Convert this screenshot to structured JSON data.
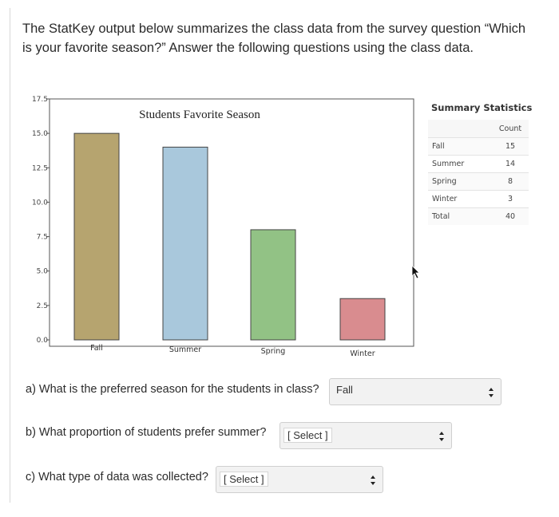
{
  "intro_text": "The StatKey output below summarizes the class data from the survey question “Which is your favorite season?” Answer the following questions using the class data.",
  "chart_data": {
    "type": "bar",
    "title": "Students Favorite Season",
    "categories": [
      "Fall",
      "Summer",
      "Spring",
      "Winter"
    ],
    "values": [
      15,
      14,
      8,
      3
    ],
    "colors": [
      "#b6a46f",
      "#a9c8dc",
      "#92c285",
      "#d98c8f"
    ],
    "ylim": [
      0,
      17.5
    ],
    "yticks": [
      "0.0",
      "2.5",
      "5.0",
      "7.5",
      "10.0",
      "12.5",
      "15.0",
      "17.5"
    ],
    "xlabel": "",
    "ylabel": "",
    "grid": false
  },
  "summary": {
    "title": "Summary Statistics",
    "column_header": "Count",
    "rows": [
      {
        "label": "Fall",
        "count": "15"
      },
      {
        "label": "Summer",
        "count": "14"
      },
      {
        "label": "Spring",
        "count": "8"
      },
      {
        "label": "Winter",
        "count": "3"
      },
      {
        "label": "Total",
        "count": "40"
      }
    ]
  },
  "questions": {
    "a": {
      "text": "a) What is the preferred season for the students in class?",
      "selected": "Fall"
    },
    "b": {
      "text": "b) What proportion of students prefer summer?",
      "selected": "[ Select ]"
    },
    "c": {
      "text": "c) What type of data was collected?",
      "selected": "[ Select ]"
    }
  },
  "icons": {
    "dropdown": "up-down-arrows-icon",
    "cursor": "mouse-pointer-icon"
  }
}
